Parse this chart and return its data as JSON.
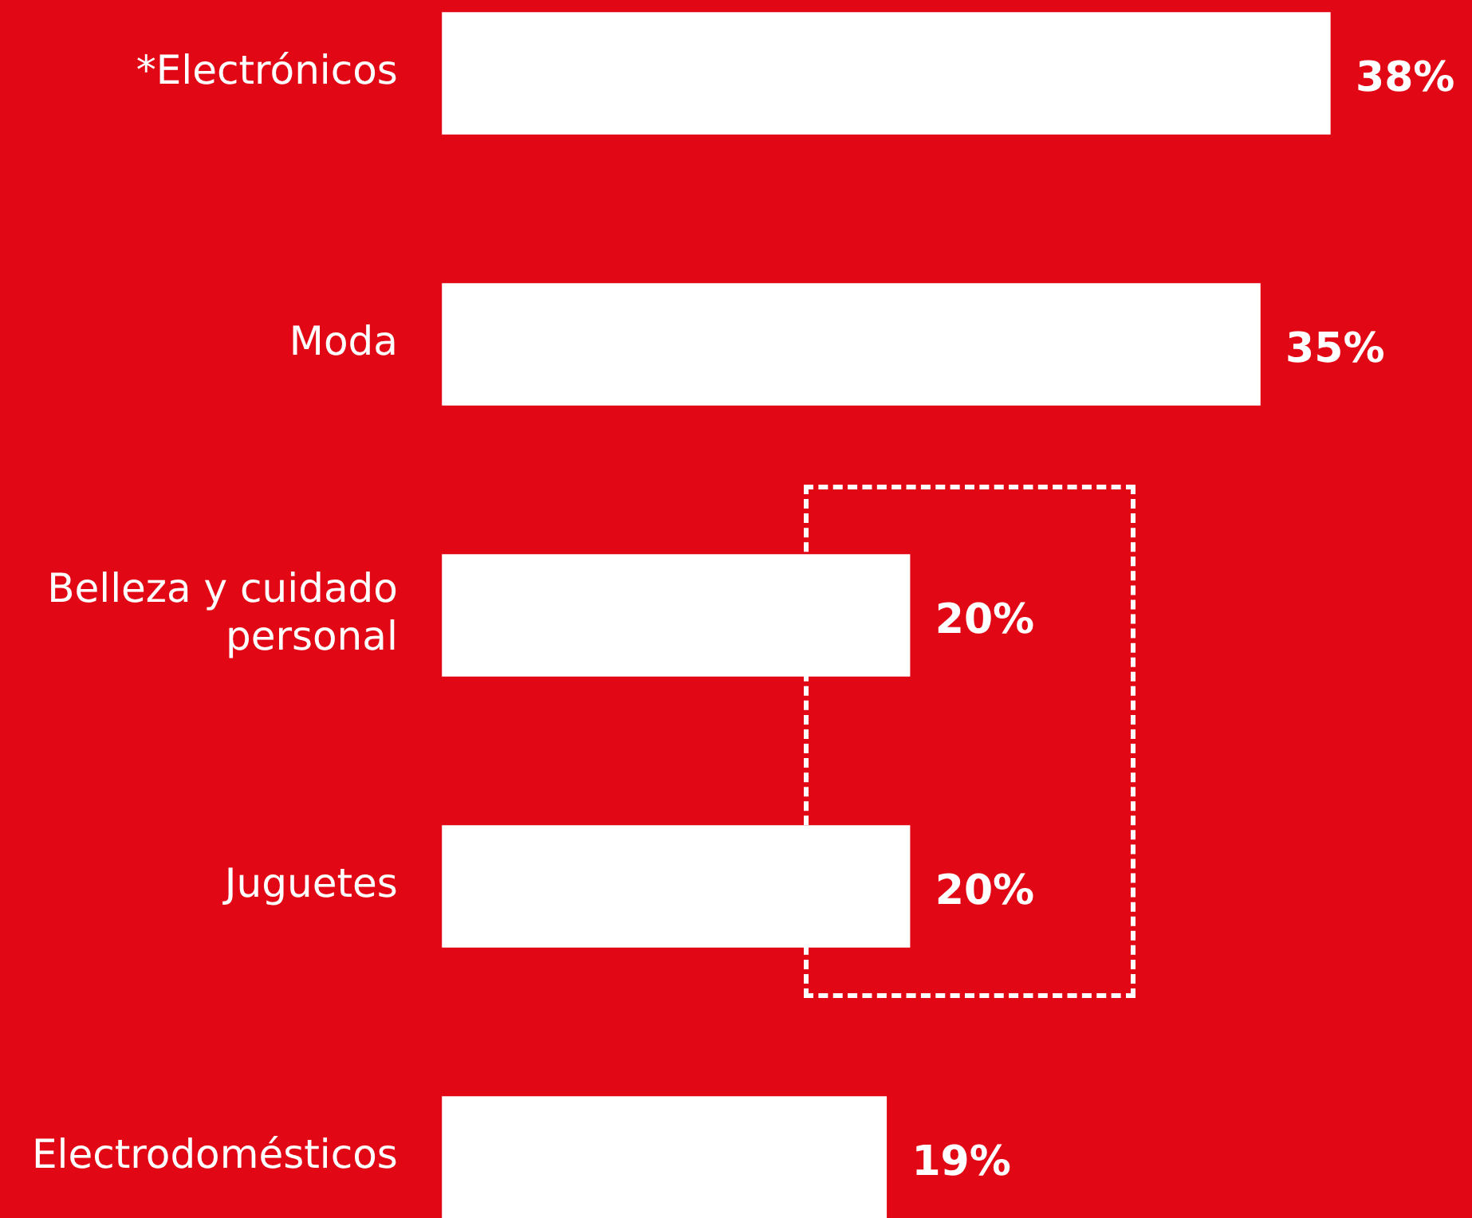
{
  "chart_data": {
    "type": "bar",
    "orientation": "horizontal",
    "categories": [
      "*Electrónicos",
      "Moda",
      "Belleza y cuidado personal",
      "Juguetes",
      "Electrodomésticos"
    ],
    "values": [
      38,
      35,
      20,
      20,
      19
    ],
    "value_labels": [
      "38%",
      "35%",
      "20%",
      "20%",
      "19%"
    ],
    "color": "#ffffff",
    "xlim": [
      0,
      38
    ]
  }
}
